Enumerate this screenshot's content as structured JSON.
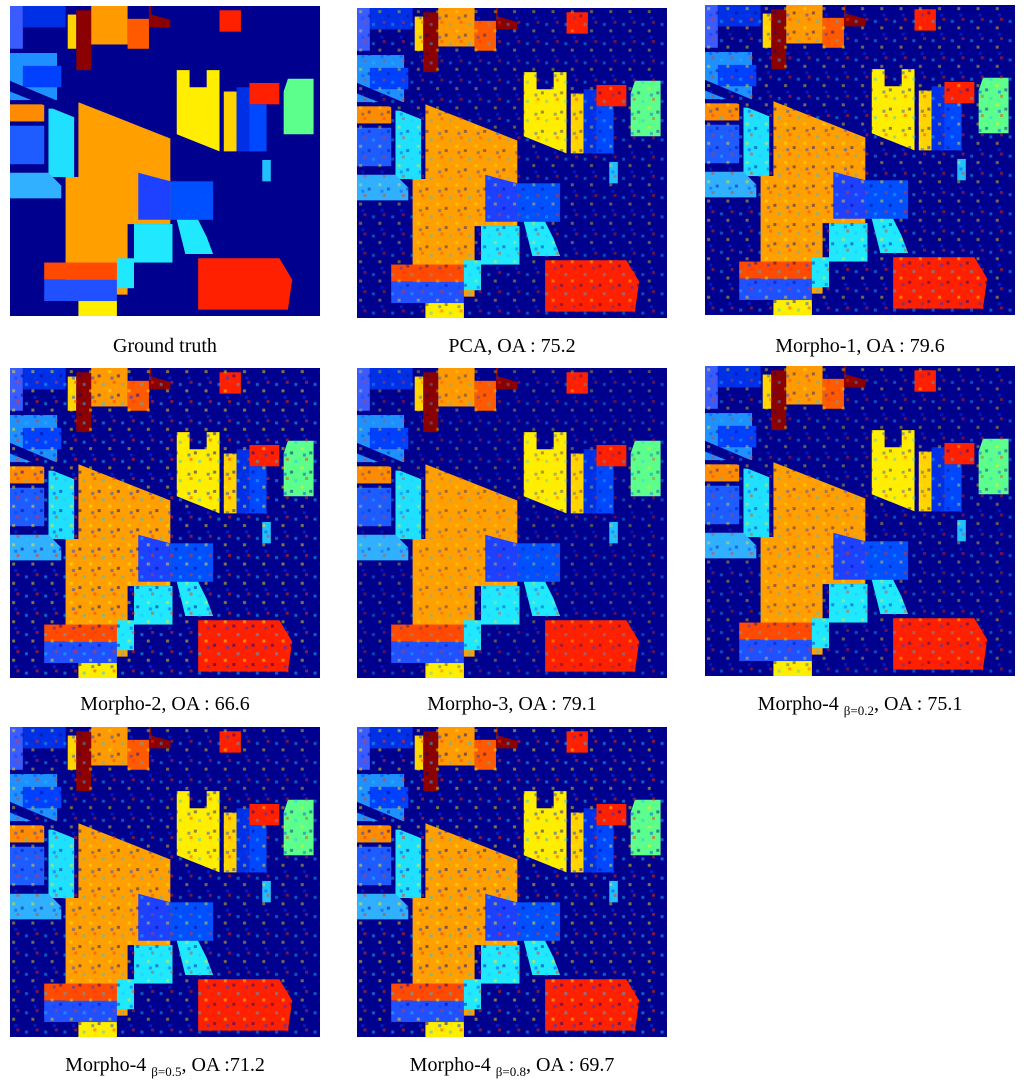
{
  "panels": [
    {
      "caption": "Ground truth"
    },
    {
      "caption": "PCA, OA : 75.2"
    },
    {
      "caption": "Morpho-1, OA : 79.6"
    },
    {
      "caption": "Morpho-2, OA : 66.6"
    },
    {
      "caption": "Morpho-3, OA : 79.1"
    },
    {
      "caption": "Morpho-4",
      "subscript": "β=0.2",
      "caption_rest": ", OA : 75.1"
    },
    {
      "caption": "Morpho-4",
      "subscript": "β=0.5",
      "caption_rest": ", OA :71.2"
    },
    {
      "caption": "Morpho-4",
      "subscript": "β=0.8",
      "caption_rest": ", OA : 69.7"
    }
  ]
}
